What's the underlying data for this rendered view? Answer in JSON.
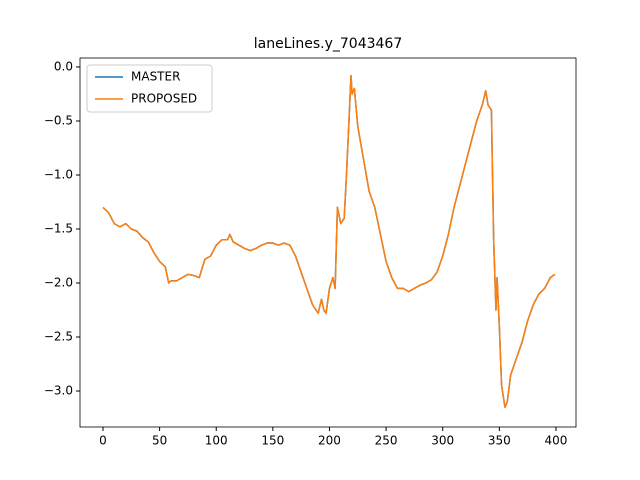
{
  "chart_data": {
    "type": "line",
    "title": "laneLines.y_7043467",
    "x": [
      0,
      5,
      10,
      15,
      20,
      25,
      30,
      35,
      40,
      45,
      50,
      55,
      58,
      60,
      65,
      70,
      75,
      80,
      85,
      90,
      95,
      100,
      105,
      110,
      112,
      115,
      120,
      125,
      130,
      135,
      140,
      145,
      150,
      155,
      160,
      165,
      170,
      175,
      180,
      185,
      190,
      193,
      195,
      197,
      200,
      203,
      205,
      207,
      210,
      213,
      215,
      217,
      219,
      220,
      222,
      225,
      230,
      235,
      240,
      245,
      250,
      255,
      260,
      265,
      270,
      275,
      280,
      285,
      290,
      295,
      300,
      305,
      310,
      315,
      320,
      325,
      330,
      335,
      338,
      340,
      343,
      345,
      347,
      348,
      350,
      352,
      355,
      357,
      360,
      365,
      370,
      375,
      380,
      385,
      390,
      395,
      399
    ],
    "series": [
      {
        "name": "MASTER",
        "color": "#1f77b4",
        "values": [
          -1.3,
          -1.35,
          -1.45,
          -1.48,
          -1.45,
          -1.5,
          -1.52,
          -1.58,
          -1.62,
          -1.72,
          -1.8,
          -1.85,
          -2.0,
          -1.98,
          -1.98,
          -1.95,
          -1.92,
          -1.93,
          -1.95,
          -1.78,
          -1.75,
          -1.65,
          -1.6,
          -1.6,
          -1.55,
          -1.62,
          -1.65,
          -1.68,
          -1.7,
          -1.68,
          -1.65,
          -1.63,
          -1.63,
          -1.65,
          -1.63,
          -1.65,
          -1.75,
          -1.9,
          -2.05,
          -2.2,
          -2.28,
          -2.15,
          -2.25,
          -2.28,
          -2.05,
          -1.95,
          -2.05,
          -1.3,
          -1.45,
          -1.4,
          -1.0,
          -0.55,
          -0.08,
          -0.25,
          -0.2,
          -0.55,
          -0.85,
          -1.15,
          -1.3,
          -1.55,
          -1.8,
          -1.95,
          -2.05,
          -2.05,
          -2.08,
          -2.05,
          -2.02,
          -2.0,
          -1.97,
          -1.9,
          -1.75,
          -1.55,
          -1.3,
          -1.1,
          -0.9,
          -0.7,
          -0.5,
          -0.35,
          -0.22,
          -0.35,
          -0.4,
          -1.6,
          -2.25,
          -1.95,
          -2.4,
          -2.95,
          -3.15,
          -3.1,
          -2.85,
          -2.7,
          -2.55,
          -2.35,
          -2.2,
          -2.1,
          -2.05,
          -1.95,
          -1.92
        ]
      },
      {
        "name": "PROPOSED",
        "color": "#ff7f0e",
        "values": [
          -1.3,
          -1.35,
          -1.45,
          -1.48,
          -1.45,
          -1.5,
          -1.52,
          -1.58,
          -1.62,
          -1.72,
          -1.8,
          -1.85,
          -2.0,
          -1.98,
          -1.98,
          -1.95,
          -1.92,
          -1.93,
          -1.95,
          -1.78,
          -1.75,
          -1.65,
          -1.6,
          -1.6,
          -1.55,
          -1.62,
          -1.65,
          -1.68,
          -1.7,
          -1.68,
          -1.65,
          -1.63,
          -1.63,
          -1.65,
          -1.63,
          -1.65,
          -1.75,
          -1.9,
          -2.05,
          -2.2,
          -2.28,
          -2.15,
          -2.25,
          -2.28,
          -2.05,
          -1.95,
          -2.05,
          -1.3,
          -1.45,
          -1.4,
          -1.0,
          -0.55,
          -0.08,
          -0.25,
          -0.2,
          -0.55,
          -0.85,
          -1.15,
          -1.3,
          -1.55,
          -1.8,
          -1.95,
          -2.05,
          -2.05,
          -2.08,
          -2.05,
          -2.02,
          -2.0,
          -1.97,
          -1.9,
          -1.75,
          -1.55,
          -1.3,
          -1.1,
          -0.9,
          -0.7,
          -0.5,
          -0.35,
          -0.22,
          -0.35,
          -0.4,
          -1.6,
          -2.25,
          -1.95,
          -2.4,
          -2.95,
          -3.15,
          -3.1,
          -2.85,
          -2.7,
          -2.55,
          -2.35,
          -2.2,
          -2.1,
          -2.05,
          -1.95,
          -1.92
        ]
      }
    ],
    "xlim": [
      -20.3,
      417.7
    ],
    "ylim": [
      -3.333,
      0.083
    ],
    "xticks": [
      0,
      50,
      100,
      150,
      200,
      250,
      300,
      350,
      400
    ],
    "yticks": [
      {
        "value": 0,
        "label": "0.0"
      },
      {
        "value": -0.5,
        "label": "−0.5"
      },
      {
        "value": -1,
        "label": "−1.0"
      },
      {
        "value": -1.5,
        "label": "−1.5"
      },
      {
        "value": -2,
        "label": "−2.0"
      },
      {
        "value": -2.5,
        "label": "−2.5"
      },
      {
        "value": -3,
        "label": "−3.0"
      }
    ],
    "grid": false,
    "legend": "upper-left"
  }
}
